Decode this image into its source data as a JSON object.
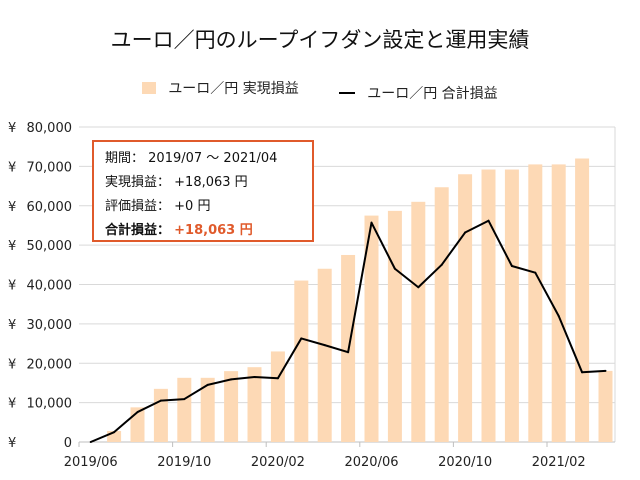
{
  "chart_data": {
    "type": "bar+line",
    "title": "ユーロ／円のループイフダン設定と運用実績",
    "legend": [
      "ユーロ／円 実現損益",
      "ユーロ／円 合計損益"
    ],
    "legend_position": "top",
    "grid": true,
    "ylim": [
      0,
      80000
    ],
    "yticks": [
      "¥ 0",
      "¥ 10,000",
      "¥ 20,000",
      "¥ 30,000",
      "¥ 40,000",
      "¥ 50,000",
      "¥ 60,000",
      "¥ 70,000",
      "¥ 80,000"
    ],
    "xtick_labels": [
      "2019/06",
      "2019/10",
      "2020/02",
      "2020/06",
      "2020/10",
      "2021/02"
    ],
    "months": [
      "2019/06",
      "2019/07",
      "2019/08",
      "2019/09",
      "2019/10",
      "2019/11",
      "2019/12",
      "2020/01",
      "2020/02",
      "2020/03",
      "2020/04",
      "2020/05",
      "2020/06",
      "2020/07",
      "2020/08",
      "2020/09",
      "2020/10",
      "2020/11",
      "2020/12",
      "2021/01",
      "2021/02",
      "2021/03",
      "2021/04"
    ],
    "series": [
      {
        "name": "ユーロ／円 実現損益",
        "type": "bar",
        "color": "#FDD9B5",
        "values": [
          null,
          2800,
          8800,
          13500,
          16300,
          16300,
          18000,
          19000,
          23000,
          41000,
          44000,
          47500,
          57500,
          58700,
          61000,
          64700,
          68000,
          69200,
          69200,
          70500,
          70500,
          72000,
          18063
        ]
      },
      {
        "name": "ユーロ／円 合計損益",
        "type": "line",
        "color": "#000000",
        "values": [
          0,
          2500,
          7600,
          10500,
          10900,
          14500,
          15900,
          16500,
          16200,
          26300,
          24600,
          22800,
          55700,
          44000,
          39300,
          45000,
          53200,
          56200,
          44700,
          43000,
          32000,
          17700,
          18063
        ]
      }
    ]
  },
  "info_box": {
    "period_label": "期間：",
    "period_value": "2019/07 ～ 2021/04",
    "realized_label": "実現損益：",
    "realized_value": "+18,063 円",
    "unrealized_label": "評価損益：",
    "unrealized_value": "+0 円",
    "total_label": "合計損益：",
    "total_value": "+18,063 円",
    "accent_color": "#E05A2B"
  }
}
